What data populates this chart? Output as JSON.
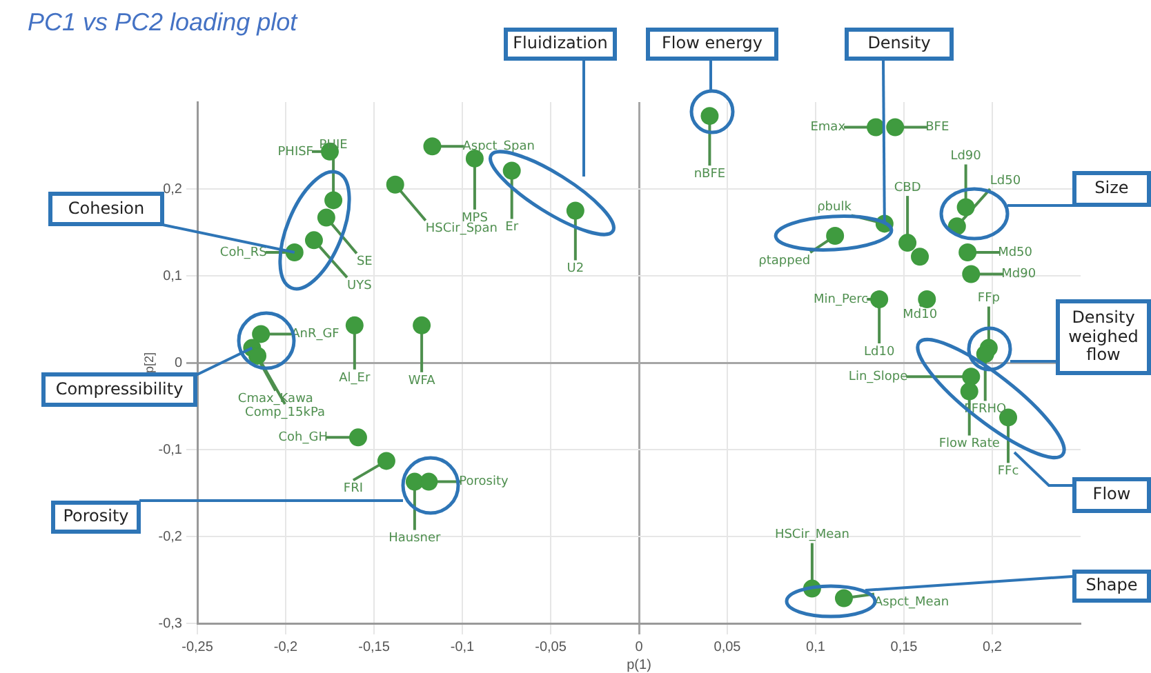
{
  "chart_data": {
    "type": "scatter",
    "title": "PC1 vs PC2 loading plot",
    "xlabel": "p(1)",
    "ylabel": "p[2]",
    "x": [
      -0.175,
      -0.173,
      -0.177,
      -0.184,
      -0.195,
      -0.138,
      -0.117,
      -0.093,
      -0.072,
      -0.036,
      0.04,
      0.134,
      0.145,
      0.185,
      0.18,
      0.186,
      0.188,
      0.152,
      0.139,
      0.111,
      0.136,
      0.163,
      0.198,
      0.196,
      0.188,
      0.187,
      0.209,
      0.098,
      0.116,
      -0.214,
      -0.219,
      -0.216,
      -0.161,
      -0.123,
      -0.159,
      -0.143,
      -0.127,
      -0.119,
      0.159
    ],
    "series": [
      {
        "color": "#3f9b3f",
        "values": [
          0.243,
          0.187,
          0.167,
          0.141,
          0.127,
          0.205,
          0.249,
          0.235,
          0.221,
          0.175,
          0.284,
          0.271,
          0.271,
          0.179,
          0.157,
          0.127,
          0.102,
          0.138,
          0.16,
          0.146,
          0.073,
          0.073,
          0.017,
          0.01,
          -0.016,
          -0.033,
          -0.063,
          -0.26,
          -0.271,
          0.033,
          0.017,
          0.008,
          0.043,
          0.043,
          -0.086,
          -0.113,
          -0.137,
          -0.137,
          0.122
        ]
      }
    ],
    "xlim": [
      -0.25,
      0.25
    ],
    "ylim": [
      -0.3,
      0.3
    ],
    "xticks": [
      {
        "value": -0.25,
        "label": "-0,25"
      },
      {
        "value": -0.2,
        "label": "-0,2"
      },
      {
        "value": -0.15,
        "label": "-0,15"
      },
      {
        "value": -0.1,
        "label": "-0,1"
      },
      {
        "value": -0.05,
        "label": "-0,05"
      },
      0,
      {
        "value": 0.05,
        "label": "0,05"
      },
      {
        "value": 0.1,
        "label": "0,1"
      },
      {
        "value": 0.15,
        "label": "0,15"
      },
      {
        "value": 0.2,
        "label": "0,2"
      }
    ],
    "yticks": [
      {
        "value": -0.3,
        "label": "-0,3"
      },
      {
        "value": -0.2,
        "label": "-0,2"
      },
      {
        "value": -0.1,
        "label": "-0,1"
      },
      0,
      {
        "value": 0.1,
        "label": "0,1"
      },
      {
        "value": 0.2,
        "label": "0,2"
      }
    ],
    "grid": true,
    "legend": false,
    "marker": "circle",
    "annotations": [
      "Fluidization",
      "Flow energy",
      {
        "text": "Density",
        "x": 0.139,
        "y": 0.16
      },
      "Size",
      "Density weighed flow",
      "Flow",
      "Shape",
      {
        "text": "Cohesion",
        "x": -0.195,
        "y": 0.127
      },
      {
        "text": "Compressibility",
        "x": -0.219,
        "y": 0.017
      },
      "Porosity",
      {
        "text": "PHISF",
        "x": -0.175,
        "y": 0.243
      },
      {
        "text": "PHIE",
        "x": -0.173,
        "y": 0.187
      },
      {
        "text": "SE",
        "x": -0.177,
        "y": 0.167
      },
      {
        "text": "UYS",
        "x": -0.184,
        "y": 0.141
      },
      {
        "text": "Coh_RS",
        "x": -0.195,
        "y": 0.127
      },
      {
        "text": "HSCir_Span",
        "x": -0.138,
        "y": 0.205
      },
      {
        "text": "Aspct_Span",
        "x": -0.117,
        "y": 0.249
      },
      {
        "text": "MPS",
        "x": -0.093,
        "y": 0.235
      },
      {
        "text": "Er",
        "x": -0.072,
        "y": 0.221
      },
      {
        "text": "U2",
        "x": -0.036,
        "y": 0.175
      },
      {
        "text": "nBFE",
        "x": 0.04,
        "y": 0.284
      },
      {
        "text": "Emax",
        "x": 0.134,
        "y": 0.271
      },
      {
        "text": "BFE",
        "x": 0.145,
        "y": 0.271
      },
      {
        "text": "Ld90",
        "x": 0.185,
        "y": 0.179
      },
      {
        "text": "Ld50",
        "x": 0.18,
        "y": 0.157
      },
      {
        "text": "Md50",
        "x": 0.186,
        "y": 0.127
      },
      {
        "text": "Md90",
        "x": 0.188,
        "y": 0.102
      },
      {
        "text": "CBD",
        "x": 0.152,
        "y": 0.138
      },
      {
        "text": "ρbulk",
        "x": 0.139,
        "y": 0.16
      },
      {
        "text": "ρtapped",
        "x": 0.111,
        "y": 0.146
      },
      {
        "text": "Min_Perc",
        "x": 0.136,
        "y": 0.073
      },
      {
        "text": "Md10",
        "x": 0.163,
        "y": 0.073
      },
      {
        "text": "Ld10",
        "x": 0.136,
        "y": 0.073
      },
      {
        "text": "FFp",
        "x": 0.198,
        "y": 0.017
      },
      {
        "text": "FFRHO",
        "x": 0.196,
        "y": 0.01
      },
      {
        "text": "Lin_Slope",
        "x": 0.188,
        "y": -0.016
      },
      {
        "text": "Flow Rate",
        "x": 0.187,
        "y": -0.033
      },
      {
        "text": "FFc",
        "x": 0.209,
        "y": -0.063
      },
      {
        "text": "HSCir_Mean",
        "x": 0.098,
        "y": -0.26
      },
      {
        "text": "Aspct_Mean",
        "x": 0.116,
        "y": -0.271
      },
      {
        "text": "AnR_GF",
        "x": -0.214,
        "y": 0.033
      },
      {
        "text": "Cmax_Kawa",
        "x": -0.219,
        "y": 0.017
      },
      {
        "text": "Comp_15kPa",
        "x": -0.216,
        "y": 0.008
      },
      {
        "text": "Al_Er",
        "x": -0.161,
        "y": 0.043
      },
      {
        "text": "WFA",
        "x": -0.123,
        "y": 0.043
      },
      {
        "text": "Coh_GH",
        "x": -0.159,
        "y": -0.086
      },
      {
        "text": "FRI",
        "x": -0.143,
        "y": -0.113
      },
      {
        "text": "Hausner",
        "x": -0.127,
        "y": -0.137
      },
      {
        "text": "Porosity",
        "x": -0.119,
        "y": -0.137
      }
    ]
  }
}
